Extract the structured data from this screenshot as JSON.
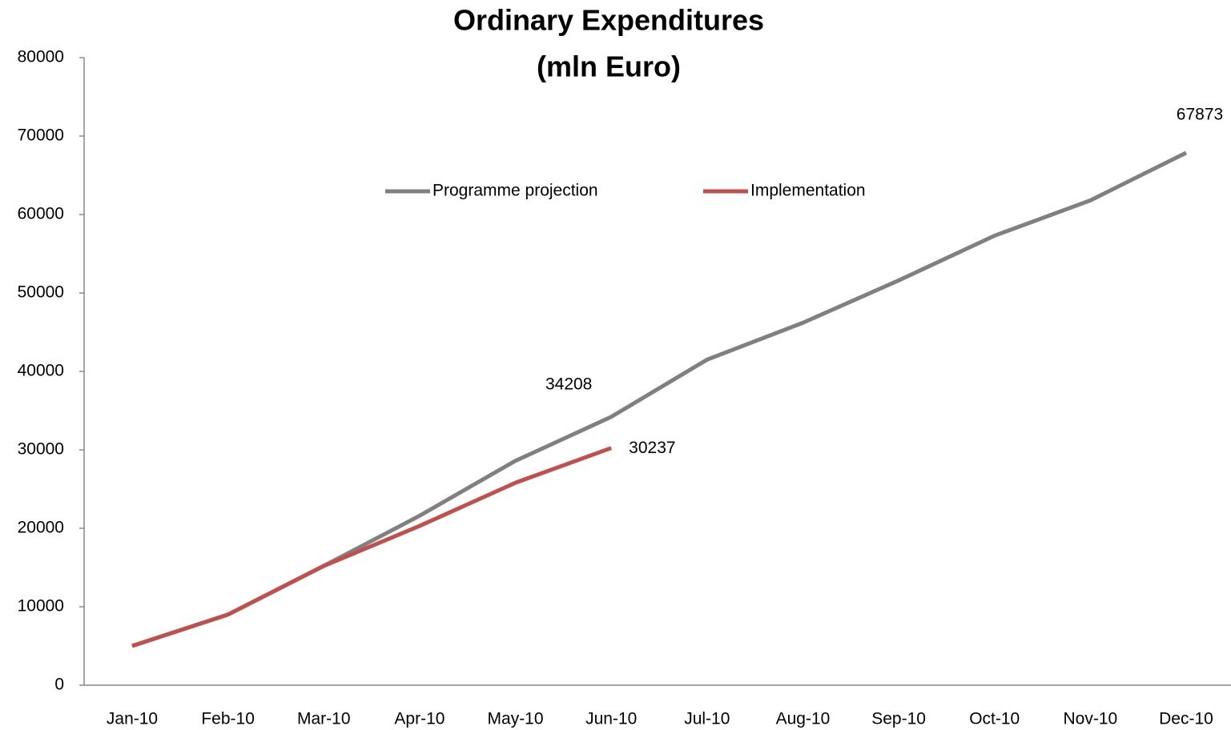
{
  "chart_data": {
    "type": "line",
    "title": [
      "Ordinary Expenditures",
      "(mln Euro)"
    ],
    "categories": [
      "Jan-10",
      "Feb-10",
      "Mar-10",
      "Apr-10",
      "May-10",
      "Jun-10",
      "Jul-10",
      "Aug-10",
      "Sep-10",
      "Oct-10",
      "Nov-10",
      "Dec-10"
    ],
    "series": [
      {
        "name": "Programme projection",
        "color": "#808080",
        "values": [
          5000,
          9000,
          15200,
          21600,
          28600,
          34208,
          41500,
          46200,
          51600,
          57300,
          61800,
          67873
        ],
        "value_labels": [
          null,
          null,
          null,
          null,
          null,
          "34208",
          null,
          null,
          null,
          null,
          null,
          "67873"
        ]
      },
      {
        "name": "Implementation",
        "color": "#c0504d",
        "values": [
          5000,
          9000,
          15200,
          20300,
          25800,
          30237,
          null,
          null,
          null,
          null,
          null,
          null
        ],
        "value_labels": [
          null,
          null,
          null,
          null,
          null,
          "30237",
          null,
          null,
          null,
          null,
          null,
          null
        ]
      }
    ],
    "ylim": [
      0,
      80000
    ],
    "yticks": [
      0,
      10000,
      20000,
      30000,
      40000,
      50000,
      60000,
      70000,
      80000
    ],
    "grid": false,
    "legend": "top"
  }
}
